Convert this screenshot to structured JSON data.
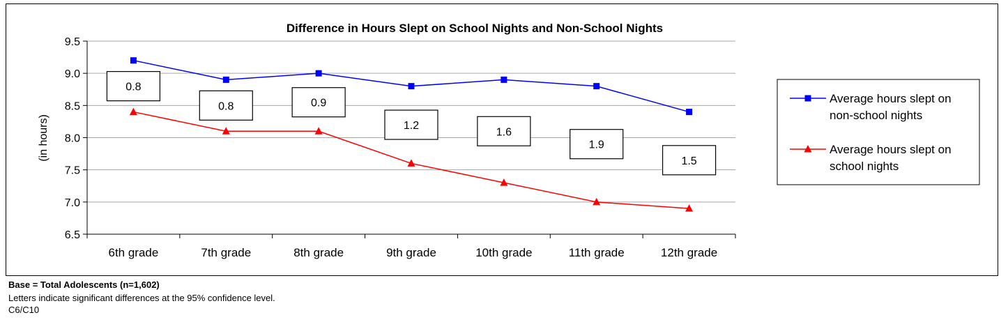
{
  "chart_data": {
    "type": "line",
    "title": "Difference in Hours Slept on School Nights and Non-School Nights",
    "ylabel": "(in hours)",
    "ylim": [
      6.5,
      9.5
    ],
    "y_ticks": [
      "9.5",
      "9.0",
      "8.5",
      "8.0",
      "7.5",
      "7.0",
      "6.5"
    ],
    "grid": true,
    "legend_position": "right",
    "categories": [
      "6th grade",
      "7th grade",
      "8th grade",
      "9th grade",
      "10th grade",
      "11th grade",
      "12th grade"
    ],
    "series": [
      {
        "name": "Average hours slept on non-school nights",
        "legend_lines": [
          "Average hours slept on",
          "non-school nights"
        ],
        "color": "#0000ff",
        "marker": "square",
        "values": [
          9.2,
          8.9,
          9.0,
          8.8,
          8.9,
          8.8,
          8.4
        ]
      },
      {
        "name": "Average hours slept on school nights",
        "legend_lines": [
          "Average hours slept on",
          "school nights"
        ],
        "color": "#ff0000",
        "marker": "triangle",
        "values": [
          8.4,
          8.1,
          8.1,
          7.6,
          7.3,
          7.0,
          6.9
        ]
      }
    ],
    "differences": [
      "0.8",
      "0.8",
      "0.9",
      "1.2",
      "1.6",
      "1.9",
      "1.5"
    ]
  },
  "footnotes": {
    "base": "Base = Total Adolescents (n=1,602)",
    "letters": "Letters indicate significant differences at the 95% confidence level.",
    "code": "C6/C10"
  }
}
